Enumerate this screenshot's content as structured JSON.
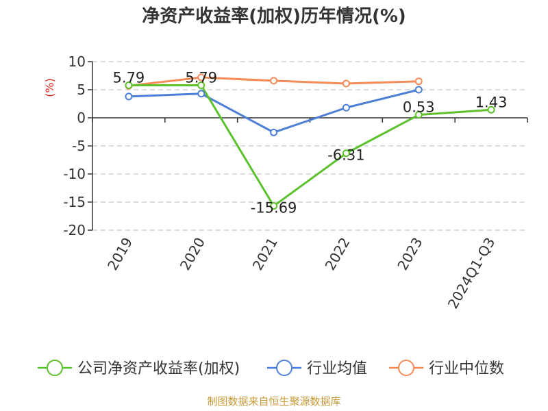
{
  "chart_data": {
    "type": "line",
    "title": "净资产收益率(加权)历年情况(%)",
    "y_unit": "(%)",
    "categories": [
      "2019",
      "2020",
      "2021",
      "2022",
      "2023",
      "2024Q1-Q3"
    ],
    "ylim": [
      -20,
      10
    ],
    "yticks": [
      10,
      5,
      0,
      -5,
      -10,
      -15,
      -20
    ],
    "grid": true,
    "legend_position": "bottom",
    "series": [
      {
        "name": "公司净资产收益率(加权)",
        "color": "#5cc12c",
        "values": [
          5.79,
          5.79,
          -15.69,
          -6.31,
          0.53,
          1.43
        ],
        "labels": [
          "5.79",
          "5.79",
          "-15.69",
          "-6.31",
          "0.53",
          "1.43"
        ]
      },
      {
        "name": "行业均值",
        "color": "#4e7fd6",
        "values": [
          3.8,
          4.3,
          -2.6,
          1.8,
          5.0,
          null
        ]
      },
      {
        "name": "行业中位数",
        "color": "#f58b56",
        "values": [
          5.7,
          7.2,
          6.6,
          6.1,
          6.5,
          null
        ]
      }
    ],
    "source": "制图数据来自恒生聚源数据库"
  }
}
